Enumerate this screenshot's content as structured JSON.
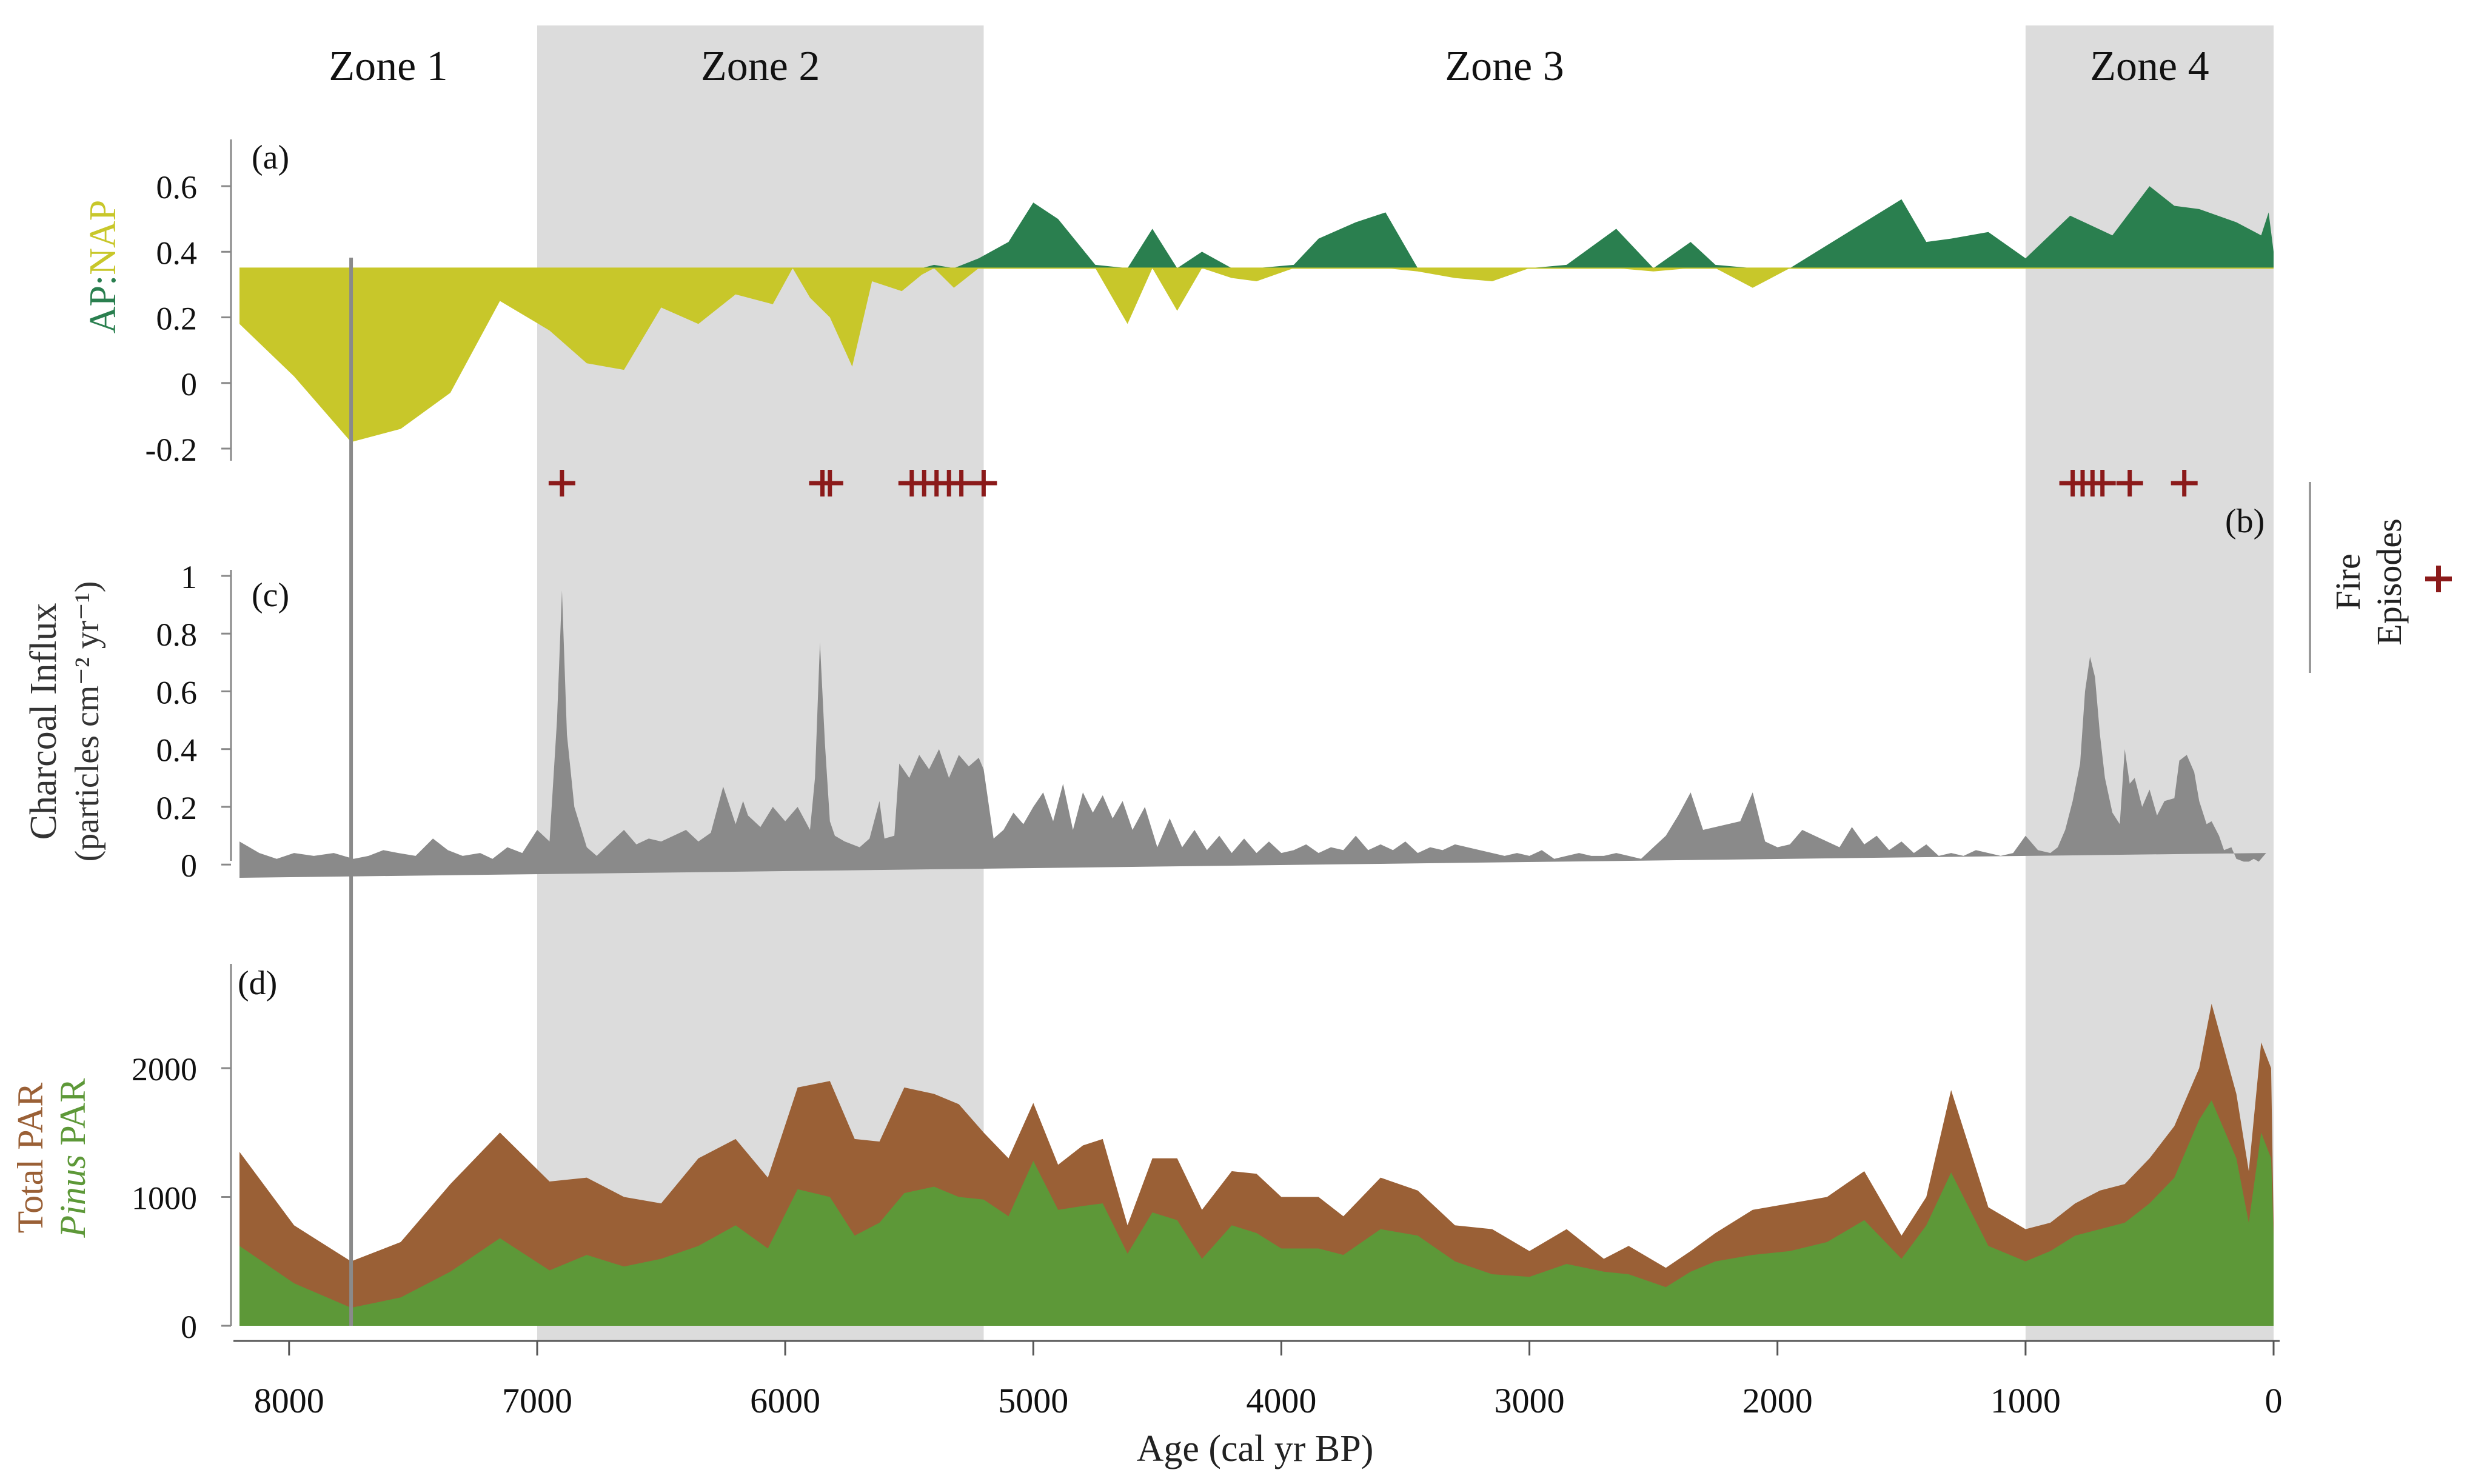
{
  "chart_data": {
    "type": "area",
    "xlabel": "Age (cal yr BP)",
    "x_ticks": [
      8000,
      7000,
      6000,
      5000,
      4000,
      3000,
      2000,
      1000,
      0
    ],
    "xlim": [
      8200,
      0
    ],
    "vertical_marker_age": 7750,
    "zones": [
      {
        "label": "Zone 1",
        "from": 8200,
        "to": 7000,
        "shaded": false
      },
      {
        "label": "Zone 2",
        "from": 7000,
        "to": 5200,
        "shaded": true
      },
      {
        "label": "Zone 3",
        "from": 5200,
        "to": 1000,
        "shaded": false
      },
      {
        "label": "Zone 4",
        "from": 1000,
        "to": 0,
        "shaded": true
      }
    ],
    "panels": [
      {
        "id": "a",
        "letter": "(a)",
        "type": "area",
        "ylabel_parts": [
          {
            "text": "AP",
            "color": "#2a7f4f"
          },
          {
            "text": ":",
            "color": "#2a7f4f"
          },
          {
            "text": "NAP",
            "color": "#c8c72a"
          }
        ],
        "ylim": [
          -0.2,
          0.65
        ],
        "yticks": [
          -0.2,
          0,
          0.2,
          0.4,
          0.6
        ],
        "ytick_labels": [
          "-0.2",
          "0",
          "0.2",
          "0.4",
          "0.6"
        ],
        "baseline": 0.35,
        "above_color": "#2a7f4f",
        "below_color": "#c8c72a",
        "series": [
          {
            "name": "AP:NAP",
            "ages": [
              8200,
              7980,
              7750,
              7550,
              7350,
              7150,
              6950,
              6800,
              6650,
              6500,
              6350,
              6200,
              6050,
              5970,
              5900,
              5820,
              5730,
              5650,
              5530,
              5450,
              5400,
              5320,
              5220,
              5100,
              5000,
              4900,
              4750,
              4620,
              4520,
              4420,
              4320,
              4200,
              4100,
              3950,
              3850,
              3700,
              3580,
              3450,
              3300,
              3150,
              3000,
              2850,
              2650,
              2500,
              2350,
              2250,
              2100,
              1950,
              1800,
              1650,
              1500,
              1400,
              1300,
              1150,
              1000,
              820,
              650,
              500,
              400,
              300,
              150,
              50,
              20,
              0
            ],
            "values": [
              0.18,
              0.02,
              -0.18,
              -0.14,
              -0.03,
              0.25,
              0.16,
              0.06,
              0.04,
              0.23,
              0.18,
              0.27,
              0.24,
              0.35,
              0.26,
              0.2,
              0.05,
              0.31,
              0.28,
              0.33,
              0.36,
              0.29,
              0.38,
              0.43,
              0.55,
              0.5,
              0.36,
              0.18,
              0.47,
              0.22,
              0.4,
              0.32,
              0.31,
              0.36,
              0.44,
              0.49,
              0.52,
              0.34,
              0.32,
              0.31,
              0.35,
              0.36,
              0.47,
              0.34,
              0.43,
              0.36,
              0.29,
              0.35,
              0.42,
              0.49,
              0.56,
              0.43,
              0.44,
              0.46,
              0.38,
              0.51,
              0.45,
              0.6,
              0.54,
              0.53,
              0.49,
              0.45,
              0.52,
              0.4
            ]
          }
        ]
      },
      {
        "id": "b",
        "letter": "(b)",
        "type": "scatter",
        "label_line1": "Fire",
        "label_line2": "Episodes",
        "marker": "+",
        "color": "#8b1a1a",
        "ages": [
          6900,
          5850,
          5820,
          5490,
          5440,
          5390,
          5340,
          5290,
          5200,
          810,
          770,
          730,
          690,
          580,
          360
        ]
      },
      {
        "id": "c",
        "letter": "(c)",
        "type": "area",
        "ylabel_line1": "Charcoal Influx",
        "ylabel_line2": "(particles cm⁻² yr⁻¹)",
        "ylim": [
          -0.05,
          1.0
        ],
        "yticks": [
          0,
          0.2,
          0.4,
          0.6,
          0.8,
          1
        ],
        "ytick_labels": [
          "0",
          "0.2",
          "0.4",
          "0.6",
          "0.8",
          "1"
        ],
        "color": "#8a8a8a",
        "series": [
          {
            "name": "Charcoal Influx",
            "ages": [
              8200,
              8120,
              8050,
              7980,
              7900,
              7820,
              7740,
              7680,
              7620,
              7560,
              7490,
              7420,
              7360,
              7300,
              7230,
              7180,
              7120,
              7060,
              7000,
              6950,
              6920,
              6900,
              6880,
              6850,
              6800,
              6760,
              6700,
              6650,
              6600,
              6550,
              6500,
              6450,
              6400,
              6350,
              6300,
              6250,
              6200,
              6170,
              6150,
              6100,
              6050,
              6000,
              5950,
              5900,
              5880,
              5860,
              5840,
              5820,
              5800,
              5760,
              5730,
              5700,
              5660,
              5620,
              5600,
              5560,
              5540,
              5500,
              5460,
              5420,
              5380,
              5340,
              5300,
              5260,
              5220,
              5200,
              5160,
              5120,
              5080,
              5040,
              5000,
              4960,
              4920,
              4880,
              4840,
              4800,
              4760,
              4720,
              4680,
              4640,
              4600,
              4550,
              4500,
              4450,
              4400,
              4350,
              4300,
              4250,
              4200,
              4150,
              4100,
              4050,
              4000,
              3950,
              3900,
              3850,
              3800,
              3750,
              3700,
              3650,
              3600,
              3550,
              3500,
              3450,
              3400,
              3350,
              3300,
              3250,
              3200,
              3150,
              3100,
              3050,
              3000,
              2950,
              2900,
              2850,
              2800,
              2750,
              2700,
              2650,
              2600,
              2550,
              2500,
              2450,
              2400,
              2350,
              2300,
              2250,
              2200,
              2150,
              2100,
              2050,
              2000,
              1950,
              1900,
              1850,
              1800,
              1750,
              1700,
              1650,
              1600,
              1550,
              1500,
              1450,
              1400,
              1350,
              1300,
              1250,
              1200,
              1150,
              1100,
              1050,
              1000,
              950,
              900,
              870,
              840,
              810,
              780,
              760,
              740,
              720,
              700,
              680,
              650,
              620,
              600,
              580,
              560,
              530,
              500,
              470,
              440,
              400,
              380,
              350,
              320,
              300,
              270,
              250,
              220,
              200,
              170,
              150,
              120,
              100,
              80,
              60,
              30,
              10,
              0
            ],
            "values": [
              0.08,
              0.04,
              0.02,
              0.04,
              0.03,
              0.04,
              0.02,
              0.03,
              0.05,
              0.04,
              0.03,
              0.09,
              0.05,
              0.03,
              0.04,
              0.02,
              0.06,
              0.04,
              0.12,
              0.08,
              0.5,
              0.95,
              0.45,
              0.2,
              0.06,
              0.03,
              0.08,
              0.12,
              0.07,
              0.09,
              0.08,
              0.1,
              0.12,
              0.08,
              0.11,
              0.27,
              0.14,
              0.22,
              0.17,
              0.13,
              0.2,
              0.15,
              0.2,
              0.12,
              0.3,
              0.77,
              0.42,
              0.15,
              0.1,
              0.08,
              0.07,
              0.06,
              0.09,
              0.22,
              0.09,
              0.1,
              0.35,
              0.3,
              0.38,
              0.33,
              0.4,
              0.3,
              0.38,
              0.34,
              0.37,
              0.33,
              0.09,
              0.12,
              0.18,
              0.14,
              0.2,
              0.25,
              0.15,
              0.28,
              0.12,
              0.25,
              0.18,
              0.24,
              0.16,
              0.22,
              0.12,
              0.2,
              0.06,
              0.16,
              0.06,
              0.12,
              0.05,
              0.1,
              0.04,
              0.09,
              0.04,
              0.08,
              0.04,
              0.05,
              0.07,
              0.04,
              0.06,
              0.05,
              0.1,
              0.05,
              0.07,
              0.05,
              0.08,
              0.04,
              0.06,
              0.05,
              0.07,
              0.06,
              0.05,
              0.04,
              0.03,
              0.04,
              0.03,
              0.05,
              0.02,
              0.03,
              0.04,
              0.03,
              0.03,
              0.04,
              0.03,
              0.02,
              0.06,
              0.1,
              0.17,
              0.25,
              0.12,
              0.13,
              0.14,
              0.15,
              0.25,
              0.08,
              0.06,
              0.07,
              0.12,
              0.1,
              0.08,
              0.06,
              0.13,
              0.07,
              0.1,
              0.05,
              0.08,
              0.04,
              0.07,
              0.03,
              0.04,
              0.03,
              0.05,
              0.04,
              0.03,
              0.04,
              0.1,
              0.05,
              0.04,
              0.06,
              0.12,
              0.22,
              0.35,
              0.6,
              0.72,
              0.65,
              0.45,
              0.3,
              0.18,
              0.14,
              0.4,
              0.28,
              0.3,
              0.2,
              0.26,
              0.17,
              0.22,
              0.23,
              0.36,
              0.38,
              0.32,
              0.22,
              0.14,
              0.15,
              0.1,
              0.05,
              0.06,
              0.02,
              0.01,
              0.01,
              0.02,
              0.01,
              0.04
            ]
          }
        ]
      },
      {
        "id": "d",
        "letter": "(d)",
        "type": "area",
        "ylabel_line1": "Total PAR",
        "ylabel_line2_italic": "Pinus",
        "ylabel_line2_rest": " PAR",
        "ylim": [
          0,
          2800
        ],
        "yticks": [
          0,
          1000,
          2000
        ],
        "ytick_labels": [
          "0",
          "1000",
          "2000"
        ],
        "series": [
          {
            "name": "Total PAR",
            "color": "#9a6036",
            "ages": [
              8200,
              7980,
              7750,
              7550,
              7350,
              7150,
              6950,
              6800,
              6650,
              6500,
              6350,
              6200,
              6070,
              5950,
              5820,
              5720,
              5620,
              5520,
              5400,
              5300,
              5200,
              5100,
              5000,
              4900,
              4800,
              4720,
              4620,
              4520,
              4420,
              4320,
              4200,
              4100,
              4000,
              3850,
              3750,
              3600,
              3450,
              3300,
              3150,
              3000,
              2850,
              2700,
              2600,
              2450,
              2350,
              2250,
              2100,
              1950,
              1800,
              1650,
              1500,
              1400,
              1300,
              1150,
              1000,
              900,
              800,
              700,
              600,
              500,
              400,
              300,
              250,
              150,
              100,
              50,
              30,
              10,
              0
            ],
            "values": [
              1350,
              780,
              500,
              650,
              1100,
              1500,
              1120,
              1150,
              1000,
              950,
              1300,
              1450,
              1150,
              1850,
              1900,
              1450,
              1430,
              1850,
              1800,
              1720,
              1500,
              1300,
              1730,
              1250,
              1400,
              1450,
              780,
              1300,
              1300,
              900,
              1200,
              1180,
              1000,
              1000,
              850,
              1150,
              1050,
              780,
              750,
              580,
              750,
              520,
              620,
              450,
              580,
              720,
              900,
              950,
              1000,
              1200,
              700,
              1000,
              1830,
              920,
              750,
              800,
              950,
              1050,
              1100,
              1300,
              1550,
              2000,
              2500,
              1800,
              1200,
              2200,
              2100,
              2000,
              800
            ]
          },
          {
            "name": "Pinus PAR",
            "color": "#5d9838",
            "ages": [
              8200,
              7980,
              7750,
              7550,
              7350,
              7150,
              6950,
              6800,
              6650,
              6500,
              6350,
              6200,
              6070,
              5950,
              5820,
              5720,
              5620,
              5520,
              5400,
              5300,
              5200,
              5100,
              5000,
              4900,
              4800,
              4720,
              4620,
              4520,
              4420,
              4320,
              4200,
              4100,
              4000,
              3850,
              3750,
              3600,
              3450,
              3300,
              3150,
              3000,
              2850,
              2700,
              2600,
              2450,
              2350,
              2250,
              2100,
              1950,
              1800,
              1650,
              1500,
              1400,
              1300,
              1150,
              1000,
              900,
              800,
              700,
              600,
              500,
              400,
              300,
              250,
              150,
              100,
              50,
              30,
              10,
              0
            ],
            "values": [
              620,
              330,
              140,
              220,
              420,
              680,
              430,
              550,
              460,
              520,
              620,
              780,
              600,
              1060,
              1000,
              700,
              800,
              1030,
              1080,
              1000,
              980,
              850,
              1280,
              900,
              930,
              950,
              560,
              880,
              820,
              520,
              780,
              720,
              600,
              600,
              550,
              750,
              700,
              500,
              400,
              380,
              480,
              420,
              400,
              300,
              420,
              500,
              550,
              580,
              650,
              820,
              520,
              780,
              1190,
              620,
              500,
              580,
              700,
              750,
              800,
              950,
              1150,
              1600,
              1750,
              1300,
              800,
              1500,
              1400,
              1300,
              700
            ]
          }
        ]
      }
    ]
  }
}
